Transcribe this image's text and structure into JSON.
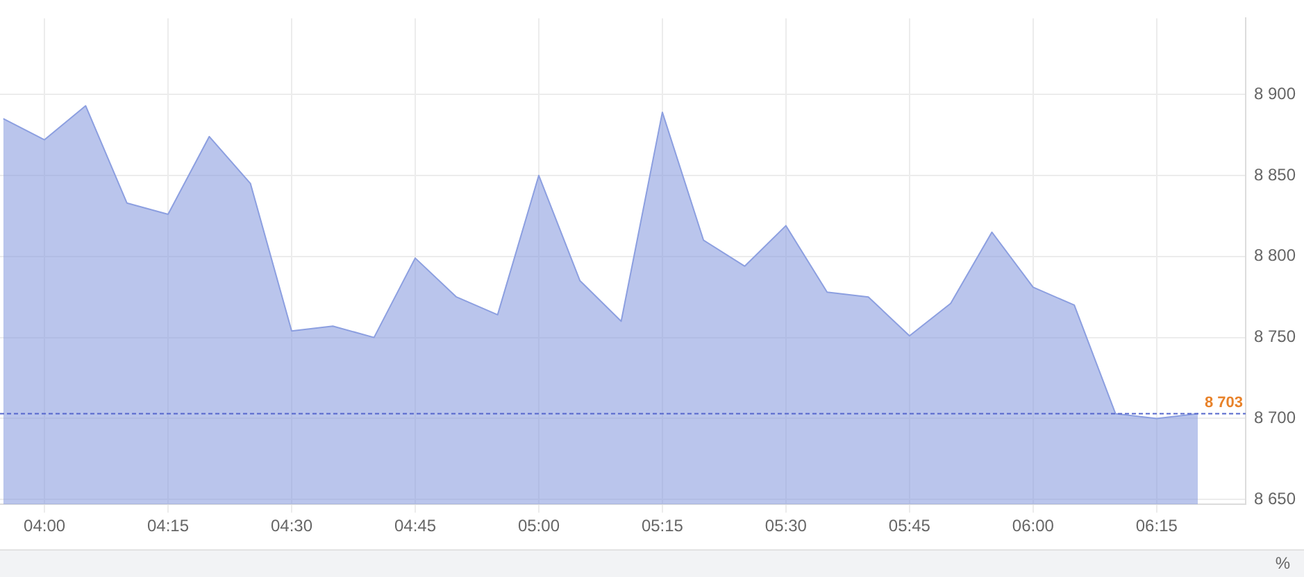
{
  "chart_data": {
    "type": "area",
    "x": [
      3.9167,
      4,
      4.0833,
      4.1667,
      4.25,
      4.3333,
      4.4167,
      4.5,
      4.5833,
      4.6667,
      4.75,
      4.8333,
      4.9167,
      5,
      5.0833,
      5.1667,
      5.25,
      5.3333,
      5.4167,
      5.5,
      5.5833,
      5.6667,
      5.75,
      5.8333,
      5.9167,
      6,
      6.0833,
      6.1667,
      6.25,
      6.3333
    ],
    "series": [
      {
        "color": "#8c9fe0",
        "values": [
          8885,
          8872,
          8893,
          8833,
          8826,
          8874,
          8845,
          8754,
          8757,
          8750,
          8799,
          8775,
          8764,
          8850,
          8785,
          8760,
          8889,
          8810,
          8794,
          8819,
          8778,
          8775,
          8751,
          8771,
          8815,
          8781,
          8770,
          8703,
          8700,
          8703
        ]
      }
    ],
    "xlim": [
      3.91,
      6.43
    ],
    "xticks": [
      {
        "value": 4,
        "label": "04:00"
      },
      {
        "value": 4.25,
        "label": "04:15"
      },
      {
        "value": 4.5,
        "label": "04:30"
      },
      {
        "value": 4.75,
        "label": "04:45"
      },
      {
        "value": 5,
        "label": "05:00"
      },
      {
        "value": 5.25,
        "label": "05:15"
      },
      {
        "value": 5.5,
        "label": "05:30"
      },
      {
        "value": 5.75,
        "label": "05:45"
      },
      {
        "value": 6,
        "label": "06:00"
      },
      {
        "value": 6.25,
        "label": "06:15"
      }
    ],
    "ylim": [
      8647,
      8947
    ],
    "yticks": [
      {
        "value": 8650,
        "label": "8 650"
      },
      {
        "value": 8700,
        "label": "8 700"
      },
      {
        "value": 8750,
        "label": "8 750"
      },
      {
        "value": 8800,
        "label": "8 800"
      },
      {
        "value": 8850,
        "label": "8 850"
      },
      {
        "value": 8900,
        "label": "8 900"
      }
    ],
    "grid": true,
    "ref_lines": [
      {
        "axis": "y",
        "value": 8703,
        "label": "8 703",
        "color": "#5566cc",
        "line_style": "dashed"
      }
    ],
    "annotations": [
      "%"
    ]
  }
}
